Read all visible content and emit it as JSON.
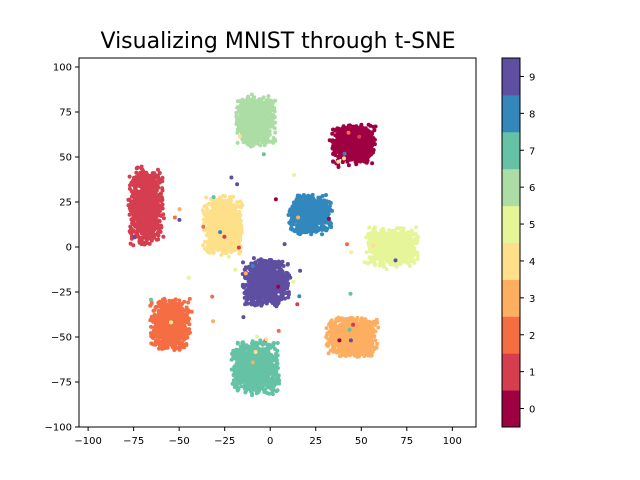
{
  "chart_data": {
    "type": "scatter",
    "title": "Visualizing MNIST through t-SNE",
    "xlabel": "",
    "ylabel": "",
    "xlim": [
      -105,
      113
    ],
    "ylim": [
      -100,
      105
    ],
    "xticks": [
      -100,
      -75,
      -50,
      -25,
      0,
      25,
      50,
      75,
      100
    ],
    "yticks": [
      -100,
      -75,
      -50,
      -25,
      0,
      25,
      50,
      75,
      100
    ],
    "grid": false,
    "colorbar": {
      "ticks": [
        "0",
        "1",
        "2",
        "3",
        "4",
        "5",
        "6",
        "7",
        "8",
        "9"
      ],
      "colors": [
        "#9e0142",
        "#d53e4f",
        "#f46d43",
        "#fdae61",
        "#fee08b",
        "#e6f598",
        "#abdda4",
        "#66c2a5",
        "#3288bd",
        "#5e4fa2"
      ]
    },
    "clusters": [
      {
        "label": "0",
        "center": [
          46,
          57
        ],
        "spread": [
          11,
          10
        ]
      },
      {
        "label": "1",
        "center": [
          -68,
          23
        ],
        "spread": [
          9,
          20
        ]
      },
      {
        "label": "2",
        "center": [
          -55,
          -43
        ],
        "spread": [
          10,
          13
        ]
      },
      {
        "label": "3",
        "center": [
          45,
          -50
        ],
        "spread": [
          13,
          10
        ]
      },
      {
        "label": "4",
        "center": [
          -26,
          12
        ],
        "spread": [
          10,
          15
        ]
      },
      {
        "label": "5",
        "center": [
          67,
          0
        ],
        "spread": [
          13,
          10
        ]
      },
      {
        "label": "6",
        "center": [
          -8,
          70
        ],
        "spread": [
          10,
          13
        ]
      },
      {
        "label": "7",
        "center": [
          -8,
          -67
        ],
        "spread": [
          12,
          14
        ]
      },
      {
        "label": "8",
        "center": [
          22,
          18
        ],
        "spread": [
          11,
          10
        ]
      },
      {
        "label": "9",
        "center": [
          -2,
          -20
        ],
        "spread": [
          12,
          12
        ]
      }
    ]
  }
}
